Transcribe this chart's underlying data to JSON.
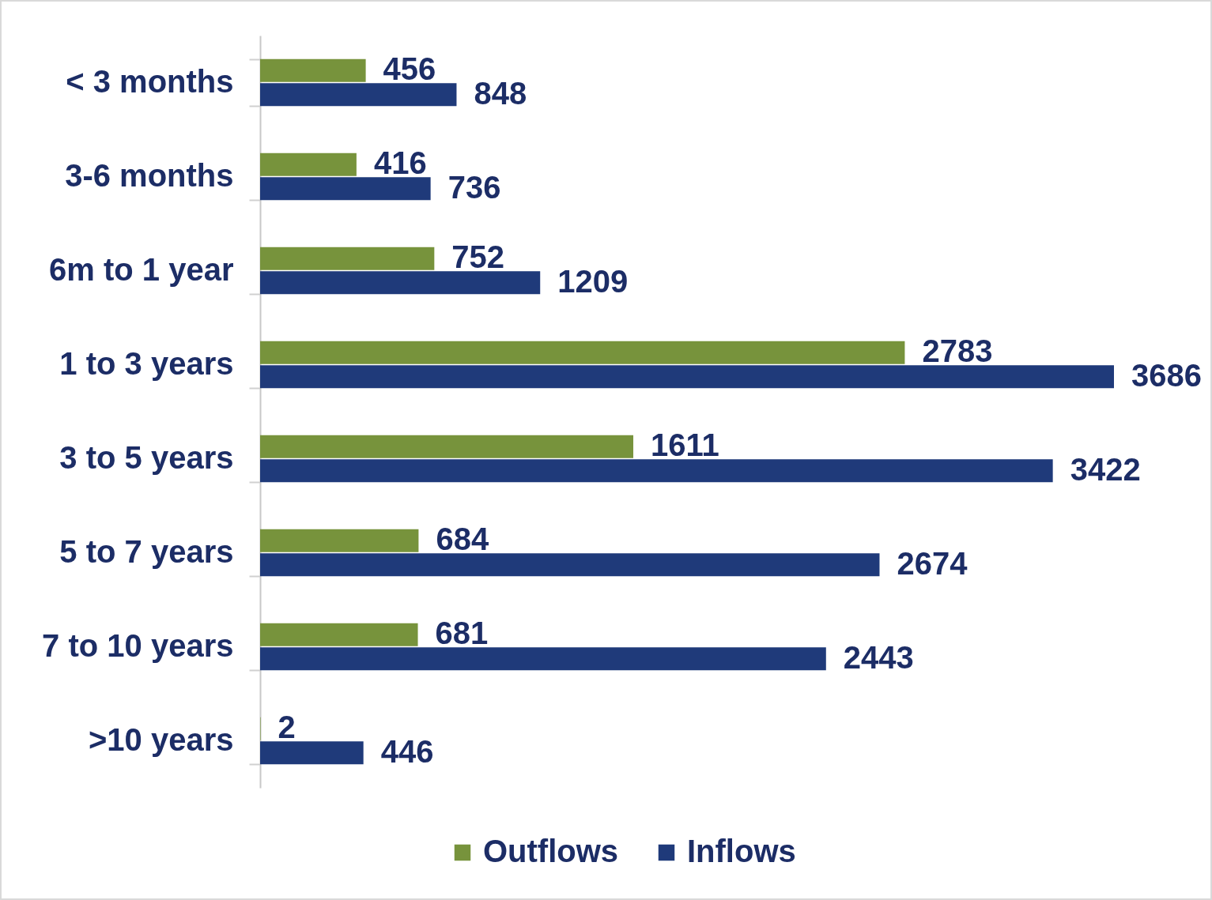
{
  "chart_data": {
    "type": "bar",
    "orientation": "horizontal",
    "categories": [
      "< 3 months",
      "3-6 months",
      "6m to 1 year",
      "1 to 3 years",
      "3 to 5 years",
      "5 to 7 years",
      "7 to 10 years",
      ">10 years"
    ],
    "series": [
      {
        "name": "Outflows",
        "color": "#77933c",
        "values": [
          456,
          416,
          752,
          2783,
          1611,
          684,
          681,
          2
        ]
      },
      {
        "name": "Inflows",
        "color": "#1f3a7a",
        "values": [
          848,
          736,
          1209,
          3686,
          3422,
          2674,
          2443,
          446
        ]
      }
    ],
    "data_labels": true,
    "legend": "bottom",
    "tick_labels": "y"
  }
}
